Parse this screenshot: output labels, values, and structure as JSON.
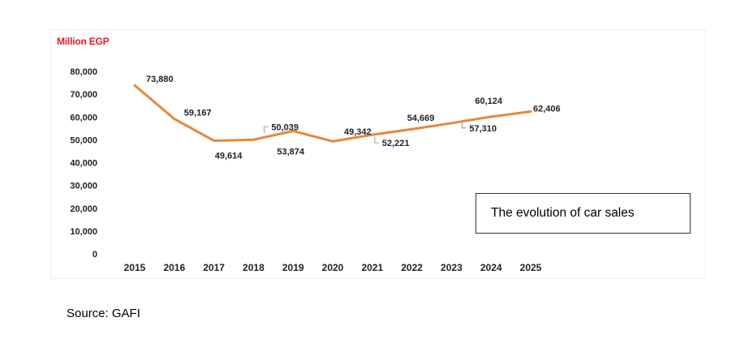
{
  "unit_label": "Million EGP",
  "source": "Source: GAFI",
  "chart_data": {
    "type": "line",
    "title": "The evolution of car sales",
    "xlabel": "",
    "ylabel": "Million EGP",
    "categories": [
      "2015",
      "2016",
      "2017",
      "2018",
      "2019",
      "2020",
      "2021",
      "2022",
      "2023",
      "2024",
      "2025"
    ],
    "series": [
      {
        "values": [
          73880,
          59167,
          49614,
          50039,
          53874,
          49342,
          52221,
          54669,
          57310,
          60124,
          62406
        ],
        "labels": [
          "73,880",
          "59,167",
          "49,614",
          "50,039",
          "53,874",
          "49,342",
          "52,221",
          "54,669",
          "57,310",
          "60,124",
          "62,406"
        ],
        "color": "#e8883a"
      }
    ],
    "ylim": [
      0,
      80000
    ],
    "yticks": [
      0,
      10000,
      20000,
      30000,
      40000,
      50000,
      60000,
      70000,
      80000
    ],
    "ytick_labels": [
      "0",
      "10,000",
      "20,000",
      "30,000",
      "40,000",
      "50,000",
      "60,000",
      "70,000",
      "80,000"
    ],
    "grid": false,
    "legend": "none"
  }
}
